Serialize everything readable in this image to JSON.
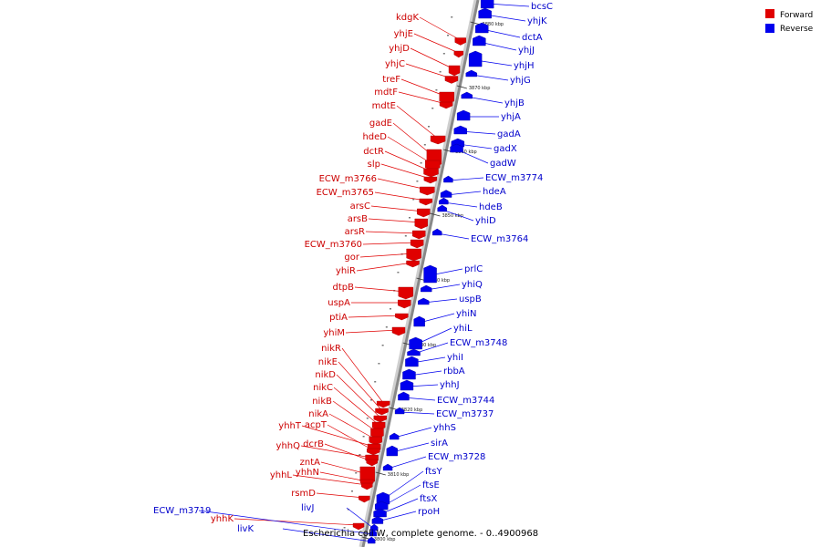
{
  "caption": "Escherichia coli W, complete genome. - 0..4900968",
  "legend": [
    {
      "label": "Forward",
      "color": "#e00000"
    },
    {
      "label": "Reverse",
      "color": "#0000ee"
    }
  ],
  "colors": {
    "forward": "#e00000",
    "reverse": "#0000ee",
    "backbone": "#888888"
  },
  "ticks": [
    "3880 kbp",
    "3870 kbp",
    "3860 kbp",
    "3850 kbp",
    "3840 kbp",
    "3830 kbp",
    "3820 kbp",
    "3810 kbp",
    "3800 kbp"
  ],
  "forward_genes": [
    "kdgK",
    "yhjE",
    "yhjD",
    "yhjC",
    "treF",
    "mdtF",
    "mdtE",
    "gadE",
    "hdeD",
    "dctR",
    "slp",
    "ECW_m3766",
    "ECW_m3765",
    "arsC",
    "arsB",
    "arsR",
    "ECW_m3760",
    "gor",
    "yhiR",
    "dtpB",
    "uspA",
    "ptiA",
    "yhiM",
    "nikR",
    "nikE",
    "nikD",
    "nikC",
    "nikB",
    "nikA",
    "yhhT",
    "acpT",
    "yhhQ",
    "dcrB",
    "zntA",
    "yhhN",
    "yhhL",
    "rsmD",
    "yhhK"
  ],
  "reverse_genes": [
    "bcsC",
    "yhjK",
    "dctA",
    "yhjJ",
    "yhjH",
    "yhjG",
    "yhjB",
    "yhjA",
    "gadA",
    "gadX",
    "gadW",
    "ECW_m3774",
    "hdeA",
    "hdeB",
    "yhiD",
    "ECW_m3764",
    "prlC",
    "yhiQ",
    "uspB",
    "yhiN",
    "yhiL",
    "ECW_m3748",
    "yhiI",
    "rbbA",
    "yhhJ",
    "ECW_m3744",
    "ECW_m3737",
    "yhhS",
    "sirA",
    "ECW_m3728",
    "ftsY",
    "ftsE",
    "ftsX",
    "rpoH",
    "livJ",
    "ECW_m3719",
    "livK"
  ]
}
